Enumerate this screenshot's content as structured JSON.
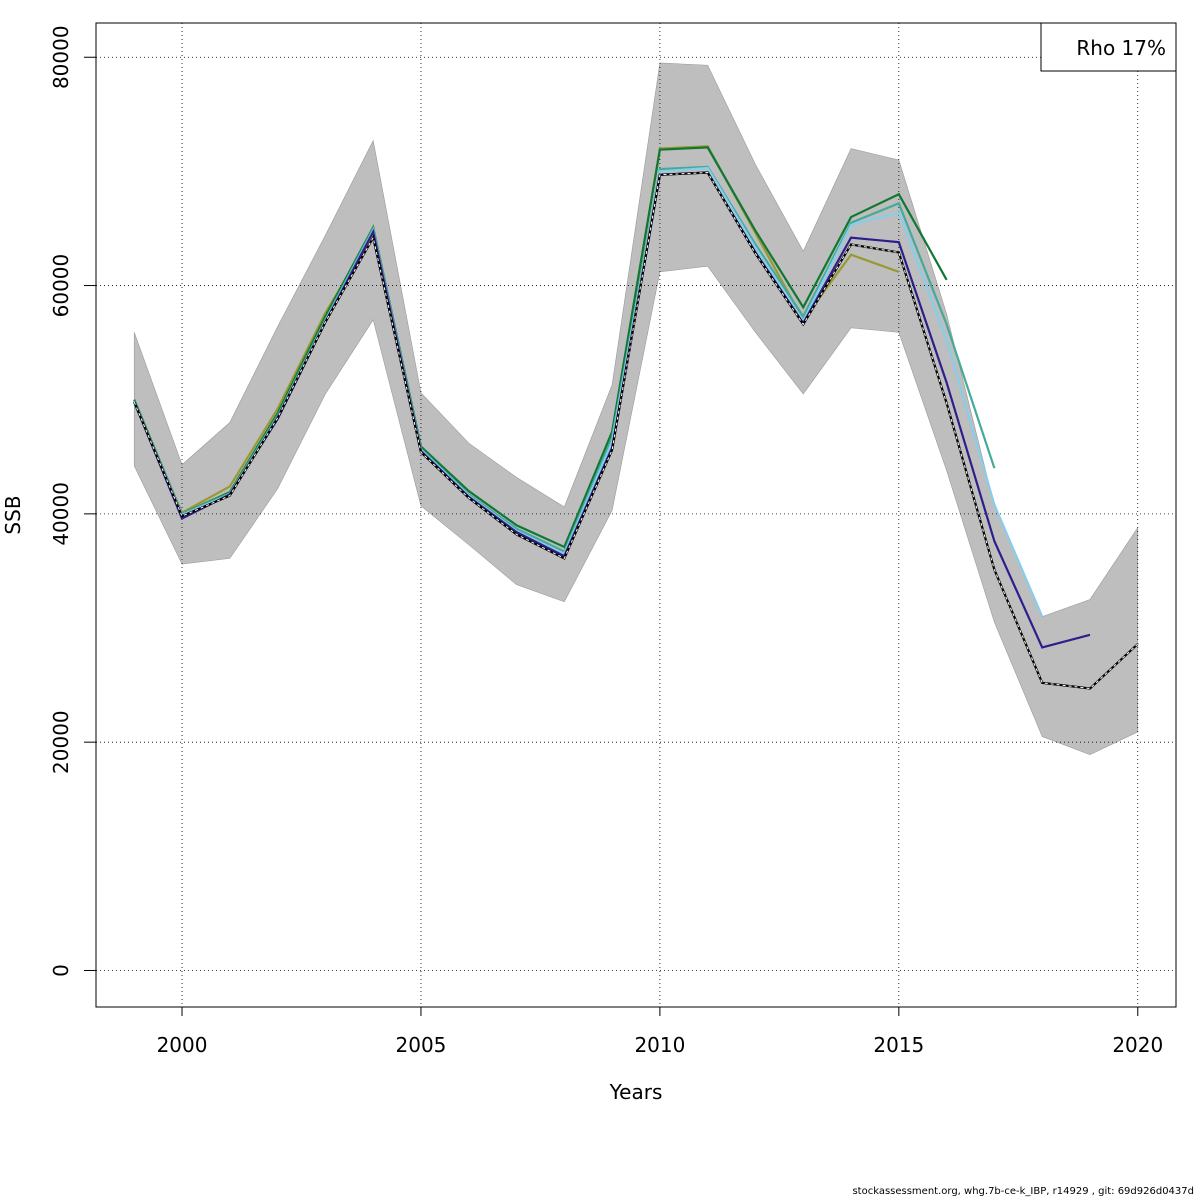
{
  "footer": "stockassessment.org, whg.7b-ce-k_IBP, r14929 , git: 69d926d0437d",
  "chart_data": {
    "type": "line",
    "title": "",
    "xlabel": "Years",
    "ylabel": "SSB",
    "xlim": [
      1998.2,
      2020.8
    ],
    "ylim": [
      -3200,
      83000
    ],
    "xticks": [
      2000,
      2005,
      2010,
      2015,
      2020
    ],
    "yticks": [
      0,
      20000,
      40000,
      60000,
      80000
    ],
    "grid": true,
    "legend": {
      "position": "top-right",
      "text": "Rho 17%"
    },
    "confidence_band": {
      "color": "#bebebe",
      "x": [
        1999,
        2000,
        2001,
        2002,
        2003,
        2004,
        2005,
        2006,
        2007,
        2008,
        2009,
        2010,
        2011,
        2012,
        2013,
        2014,
        2015,
        2016,
        2017,
        2018,
        2019,
        2020
      ],
      "upper": [
        55900,
        44300,
        48000,
        56400,
        64400,
        72700,
        50600,
        46200,
        43200,
        40600,
        51300,
        79500,
        79300,
        70600,
        63000,
        72000,
        71000,
        57500,
        40700,
        31000,
        32500,
        38800
      ],
      "lower": [
        44200,
        35600,
        36100,
        42200,
        50500,
        57000,
        40700,
        37300,
        33800,
        32300,
        40300,
        61200,
        61700,
        55900,
        50500,
        56300,
        55900,
        43800,
        30500,
        20500,
        18900,
        20900
      ]
    },
    "series": [
      {
        "color": "#000000",
        "dashed": true,
        "x": [
          1999,
          2000,
          2001,
          2002,
          2003,
          2004,
          2005,
          2006,
          2007,
          2008,
          2009,
          2010,
          2011,
          2012,
          2013,
          2014,
          2015,
          2016,
          2017,
          2018,
          2019,
          2020
        ],
        "values": [
          49800,
          39800,
          41600,
          48400,
          56800,
          64200,
          45400,
          41400,
          38200,
          36100,
          45600,
          69700,
          69900,
          62800,
          56600,
          63600,
          62900,
          49700,
          35100,
          25200,
          24700,
          28600
        ]
      },
      {
        "color": "#2e1e8c",
        "x": [
          1999,
          2000,
          2001,
          2002,
          2003,
          2004,
          2005,
          2006,
          2007,
          2008,
          2009,
          2010,
          2011,
          2012,
          2013,
          2014,
          2015,
          2016,
          2017,
          2018,
          2019
        ],
        "values": [
          49800,
          39600,
          41700,
          48300,
          56800,
          64700,
          45500,
          41500,
          38400,
          36300,
          45800,
          69700,
          69900,
          62900,
          56700,
          64200,
          63800,
          51500,
          37600,
          28300,
          29400
        ]
      },
      {
        "color": "#87ceeb",
        "x": [
          1999,
          2000,
          2001,
          2002,
          2003,
          2004,
          2005,
          2006,
          2007,
          2008,
          2009,
          2010,
          2011,
          2012,
          2013,
          2014,
          2015,
          2016,
          2017,
          2018
        ],
        "values": [
          49700,
          39900,
          41700,
          48400,
          56900,
          64800,
          45600,
          41600,
          38500,
          36500,
          46300,
          70000,
          70300,
          63300,
          56900,
          65300,
          66400,
          55200,
          40800,
          31000
        ]
      },
      {
        "color": "#44aa99",
        "x": [
          1999,
          2000,
          2001,
          2002,
          2003,
          2004,
          2005,
          2006,
          2007,
          2008,
          2009,
          2010,
          2011,
          2012,
          2013,
          2014,
          2015,
          2016,
          2017
        ],
        "values": [
          49900,
          40000,
          41800,
          48600,
          57000,
          65000,
          45700,
          41700,
          38700,
          36700,
          46700,
          70200,
          70400,
          63600,
          57300,
          65500,
          67200,
          56600,
          44000
        ]
      },
      {
        "color": "#117733",
        "x": [
          1999,
          2000,
          2001,
          2002,
          2003,
          2004,
          2005,
          2006,
          2007,
          2008,
          2009,
          2010,
          2011,
          2012,
          2013,
          2014,
          2015,
          2016
        ],
        "values": [
          50000,
          40000,
          41900,
          48800,
          57300,
          65100,
          45900,
          42000,
          39000,
          37100,
          47200,
          71900,
          72100,
          64800,
          58100,
          66000,
          68000,
          60500
        ]
      },
      {
        "color": "#999933",
        "x": [
          1999,
          2000,
          2001,
          2002,
          2003,
          2004,
          2005,
          2006,
          2007,
          2008,
          2009,
          2010,
          2011,
          2012,
          2013,
          2014,
          2015
        ],
        "values": [
          49700,
          40100,
          42400,
          49200,
          57600,
          64600,
          45400,
          41700,
          38400,
          36700,
          47100,
          72000,
          72200,
          64600,
          57000,
          62700,
          61200
        ]
      }
    ]
  }
}
